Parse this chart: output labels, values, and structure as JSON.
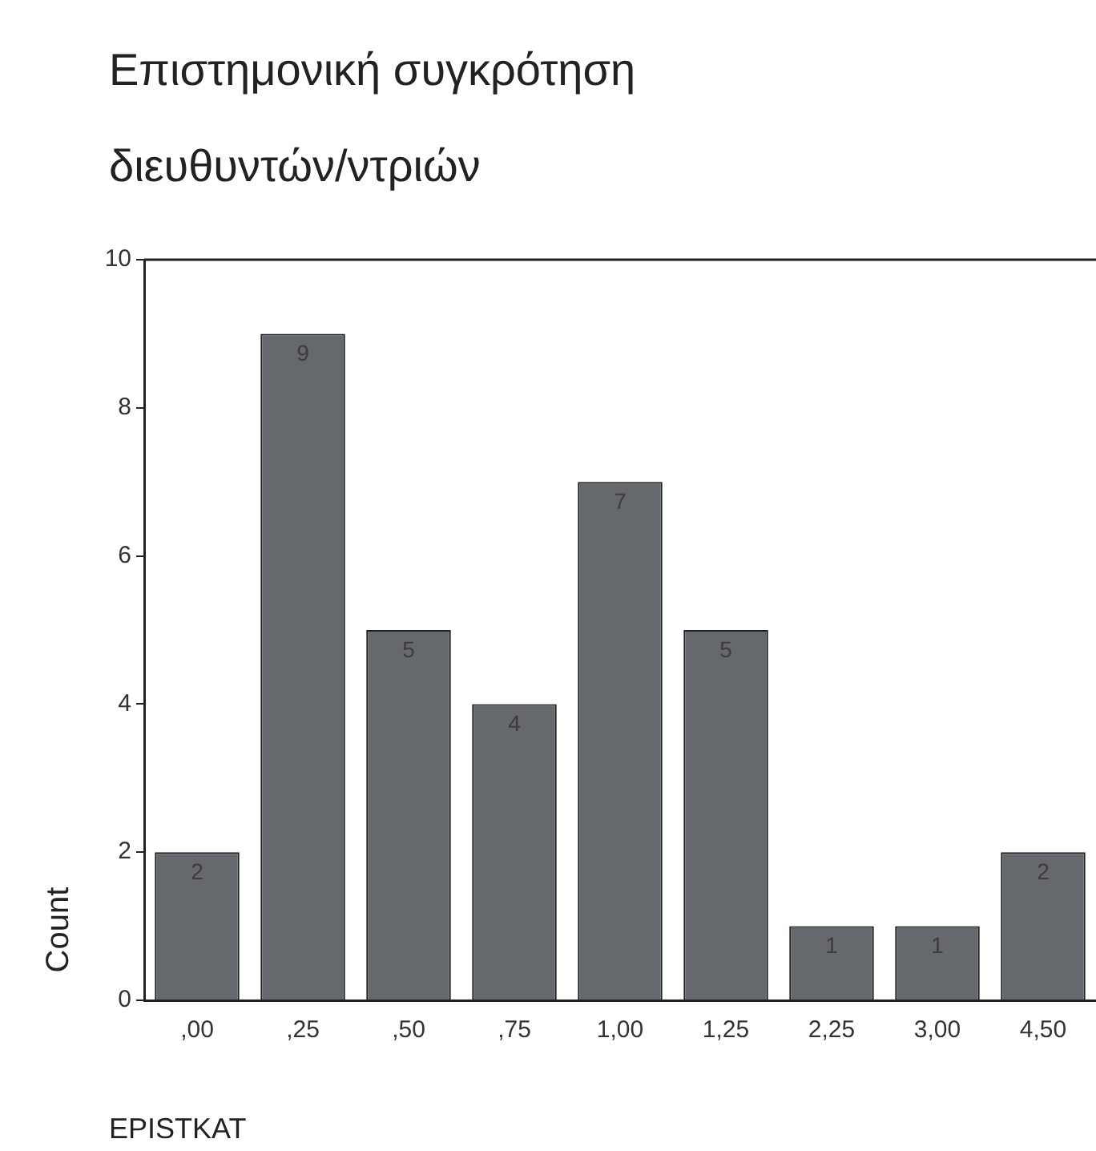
{
  "chart_data": {
    "type": "bar",
    "title": "Επιστημονική συγκρότηση διευθυντών/ντριών",
    "xlabel": "EPISTKAT",
    "ylabel": "Count",
    "categories": [
      ",00",
      ",25",
      ",50",
      ",75",
      "1,00",
      "1,25",
      "2,25",
      "3,00",
      "4,50"
    ],
    "values": [
      2,
      9,
      5,
      4,
      7,
      5,
      1,
      1,
      2
    ],
    "color": "#65686d",
    "ylim": [
      0,
      10
    ],
    "yticks": [
      0,
      2,
      4,
      6,
      8,
      10
    ],
    "grid": false,
    "legend": false,
    "data_labels": true
  }
}
